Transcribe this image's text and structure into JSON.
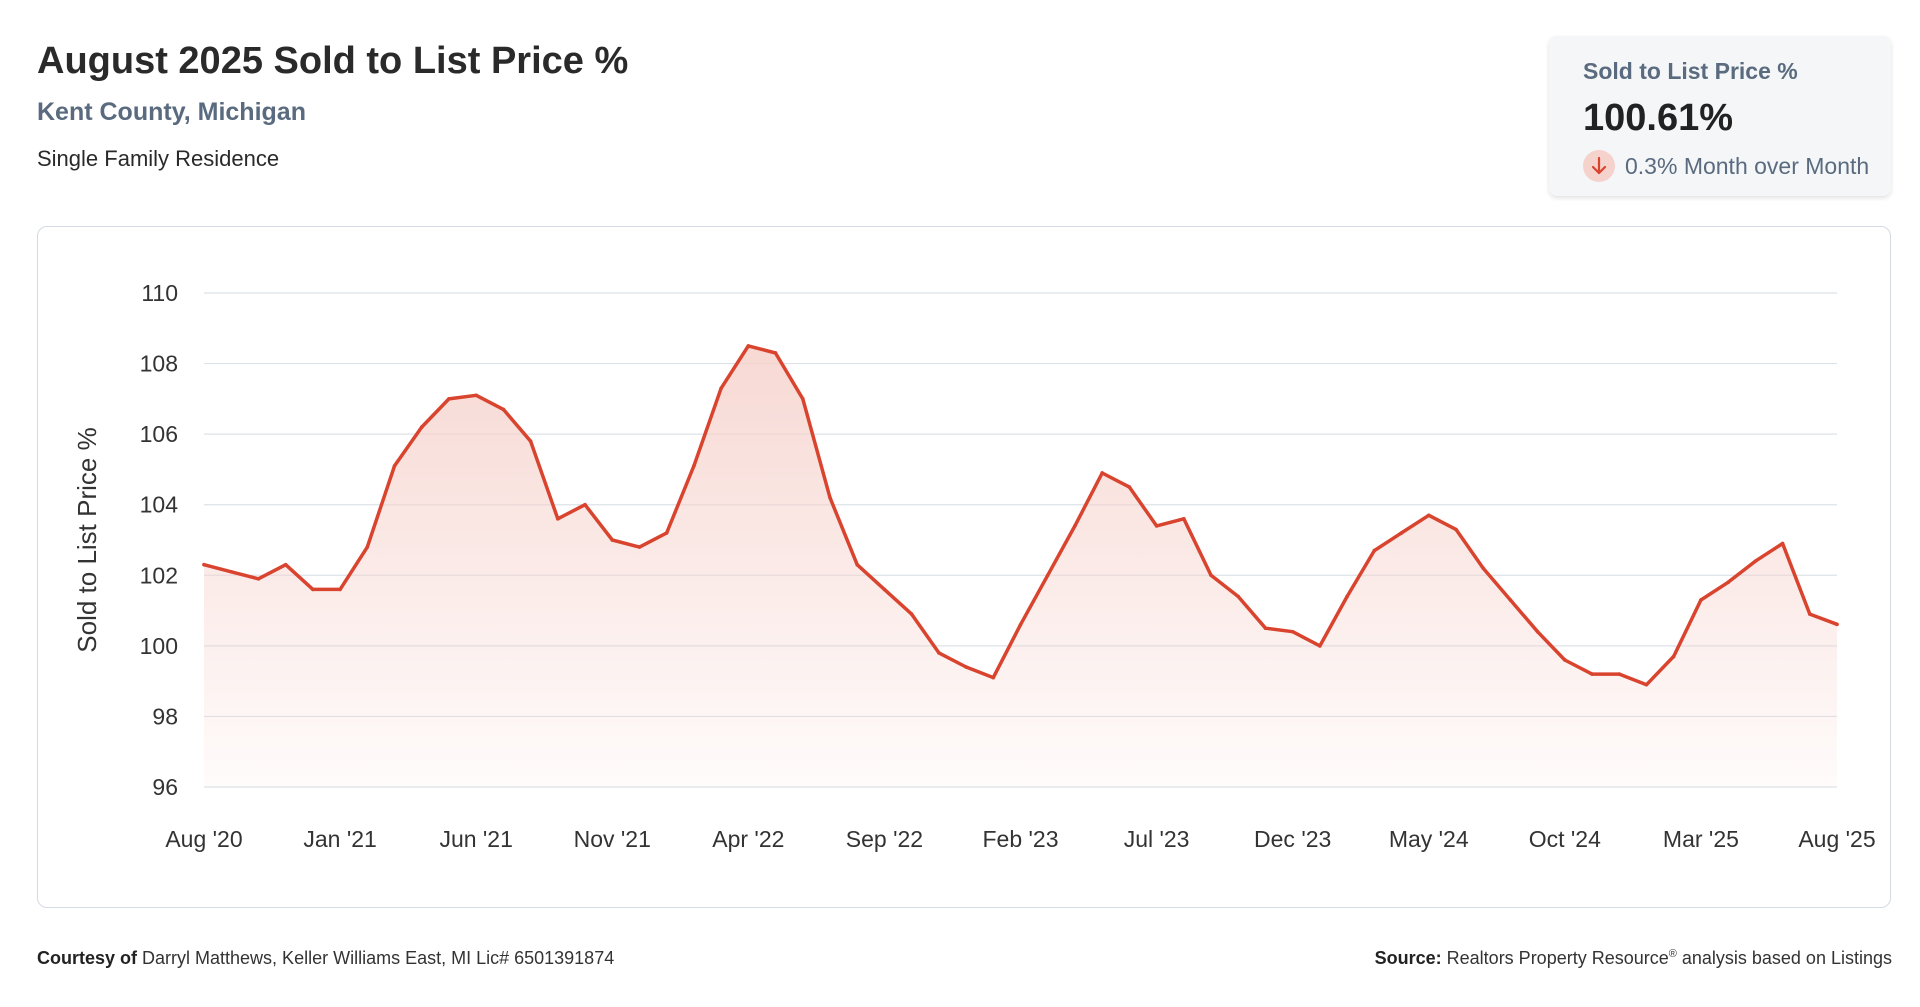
{
  "header": {
    "title": "August 2025 Sold to List Price %",
    "location": "Kent County, Michigan",
    "property_type": "Single Family Residence"
  },
  "kpi": {
    "label": "Sold to List Price %",
    "value": "100.61%",
    "change": "0.3% Month over Month",
    "direction_icon": "down-arrow-icon",
    "accent_color": "#d9442f",
    "badge_color": "#f6d2cc"
  },
  "footer": {
    "courtesy_label": "Courtesy of",
    "courtesy_text": "Darryl Matthews, Keller Williams East, MI Lic# 6501391874",
    "source_label": "Source:",
    "source_text_1": "Realtors Property Resource",
    "source_sup": "®",
    "source_text_2": " analysis based on Listings"
  },
  "chart_data": {
    "type": "area",
    "title": "",
    "xlabel": "",
    "ylabel": "Sold to List Price %",
    "ylim": [
      96,
      110
    ],
    "yticks": [
      96,
      98,
      100,
      102,
      104,
      106,
      108,
      110
    ],
    "grid": true,
    "line_color": "#d9442f",
    "fill_color": "#f6d2cc",
    "x_tick_labels": [
      "Aug '20",
      "Jan '21",
      "Jun '21",
      "Nov '21",
      "Apr '22",
      "Sep '22",
      "Feb '23",
      "Jul '23",
      "Dec '23",
      "May '24",
      "Oct '24",
      "Mar '25",
      "Aug '25"
    ],
    "x_tick_months": [
      "2020-08",
      "2021-01",
      "2021-06",
      "2021-11",
      "2022-04",
      "2022-09",
      "2023-02",
      "2023-07",
      "2023-12",
      "2024-05",
      "2024-10",
      "2025-03",
      "2025-08"
    ],
    "series": [
      {
        "months": [
          "2020-08",
          "2020-09",
          "2020-10",
          "2020-11",
          "2020-12",
          "2021-01",
          "2021-02",
          "2021-03",
          "2021-04",
          "2021-05",
          "2021-06",
          "2021-07",
          "2021-08",
          "2021-09",
          "2021-10",
          "2021-11",
          "2021-12",
          "2022-01",
          "2022-02",
          "2022-03",
          "2022-04",
          "2022-05",
          "2022-06",
          "2022-07",
          "2022-08",
          "2022-09",
          "2022-10",
          "2022-11",
          "2022-12",
          "2023-01",
          "2023-02",
          "2023-03",
          "2023-04",
          "2023-05",
          "2023-06",
          "2023-07",
          "2023-08",
          "2023-09",
          "2023-10",
          "2023-11",
          "2023-12",
          "2024-01",
          "2024-02",
          "2024-03",
          "2024-04",
          "2024-05",
          "2024-06",
          "2024-07",
          "2024-08",
          "2024-09",
          "2024-10",
          "2024-11",
          "2024-12",
          "2025-01",
          "2025-02",
          "2025-03",
          "2025-04",
          "2025-05",
          "2025-06",
          "2025-07",
          "2025-08"
        ],
        "values": [
          102.3,
          102.1,
          101.9,
          102.3,
          101.6,
          101.6,
          102.8,
          105.1,
          106.2,
          107.0,
          107.1,
          106.7,
          105.8,
          103.6,
          104.0,
          103.0,
          102.8,
          103.2,
          105.1,
          107.3,
          108.5,
          108.3,
          107.0,
          104.2,
          102.3,
          101.6,
          100.9,
          99.8,
          99.4,
          99.1,
          100.6,
          102.0,
          103.4,
          104.9,
          104.5,
          103.4,
          103.6,
          102.0,
          101.4,
          100.5,
          100.4,
          100.0,
          101.4,
          102.7,
          103.2,
          103.7,
          103.3,
          102.2,
          101.3,
          100.4,
          99.6,
          99.2,
          99.2,
          98.9,
          99.7,
          101.3,
          101.8,
          102.4,
          102.9,
          100.9,
          100.61
        ]
      }
    ]
  }
}
